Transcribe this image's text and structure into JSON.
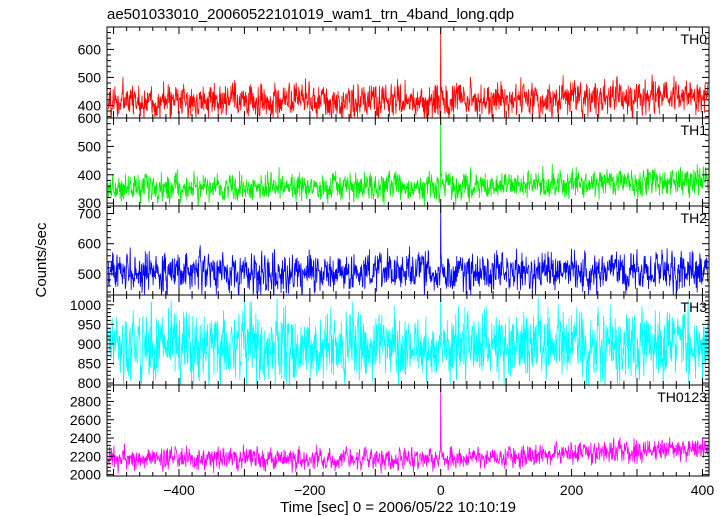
{
  "chart_data": {
    "type": "line",
    "title": "ae501033010_20060522101019_wam1_trn_4band_long.qdp",
    "xlabel": "Time [sec] 0 = 2006/05/22 10:10:19",
    "ylabel": "Counts/sec",
    "xlim": [
      -510,
      410
    ],
    "xticks": [
      -400,
      -200,
      0,
      200,
      400
    ],
    "grid": false,
    "panels": [
      {
        "name": "TH0",
        "color": "#ff0000",
        "ylim": [
          355,
          680
        ],
        "yticks": [
          400,
          500,
          600
        ],
        "series": {
          "baseline": 415,
          "late_baseline": 430,
          "noise_amplitude": 38,
          "spike": {
            "time": 0,
            "peak": 690
          }
        }
      },
      {
        "name": "TH1",
        "color": "#00ee00",
        "ylim": [
          290,
          600
        ],
        "yticks": [
          300,
          400,
          500,
          600
        ],
        "series": {
          "baseline": 355,
          "late_baseline": 380,
          "noise_amplitude": 30,
          "spike": {
            "time": 0,
            "peak": 600
          }
        }
      },
      {
        "name": "TH2",
        "color": "#0000ff",
        "ylim": [
          430,
          725
        ],
        "yticks": [
          500,
          600,
          700
        ],
        "series": {
          "baseline": 505,
          "late_baseline": 510,
          "noise_amplitude": 40,
          "spike": {
            "time": 0,
            "peak": 730
          }
        }
      },
      {
        "name": "TH3",
        "color": "#00ffff",
        "ylim": [
          795,
          1025
        ],
        "yticks": [
          800,
          850,
          900,
          950,
          1000
        ],
        "series": {
          "baseline": 895,
          "late_baseline": 900,
          "noise_amplitude": 55,
          "spike": {
            "time": 0,
            "peak": 1030
          }
        }
      },
      {
        "name": "TH0123",
        "color": "#ff00ff",
        "ylim": [
          1985,
          2980
        ],
        "yticks": [
          2000,
          2200,
          2400,
          2600,
          2800
        ],
        "series": {
          "baseline": 2170,
          "late_baseline": 2290,
          "noise_amplitude": 75,
          "spike": {
            "time": 0,
            "peak": 2980
          }
        }
      }
    ]
  }
}
